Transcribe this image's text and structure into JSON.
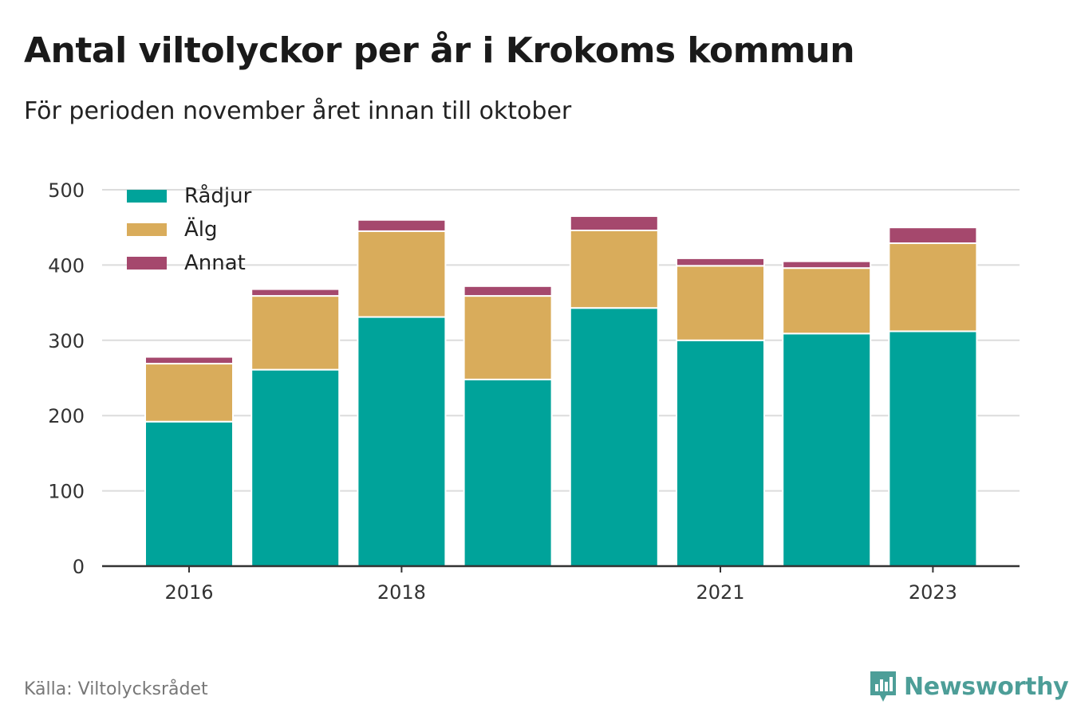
{
  "header": {
    "title": "Antal viltolyckor per år i Krokoms kommun",
    "subtitle": "För perioden november året innan till oktober"
  },
  "footer": {
    "source": "Källa: Viltolycksrådet",
    "brand": "Newsworthy",
    "brand_color": "#4d9e98"
  },
  "chart_data": {
    "type": "bar",
    "stacked": true,
    "categories": [
      "2016",
      "2017",
      "2018",
      "2019",
      "2020",
      "2021",
      "2022",
      "2023"
    ],
    "x_tick_labels": [
      "2016",
      "",
      "2018",
      "",
      "",
      "2021",
      "",
      "2023"
    ],
    "series": [
      {
        "name": "Rådjur",
        "color": "#00a39a",
        "values": [
          192,
          261,
          331,
          248,
          343,
          300,
          309,
          312
        ]
      },
      {
        "name": "Älg",
        "color": "#d9ac5b",
        "values": [
          77,
          98,
          114,
          111,
          103,
          99,
          87,
          117
        ]
      },
      {
        "name": "Annat",
        "color": "#a5486d",
        "values": [
          9,
          9,
          15,
          13,
          19,
          10,
          9,
          21
        ]
      }
    ],
    "ylim": [
      0,
      500
    ],
    "y_ticks": [
      0,
      100,
      200,
      300,
      400,
      500
    ],
    "xlabel": "",
    "ylabel": "",
    "grid": true,
    "legend_position": "top-left"
  }
}
